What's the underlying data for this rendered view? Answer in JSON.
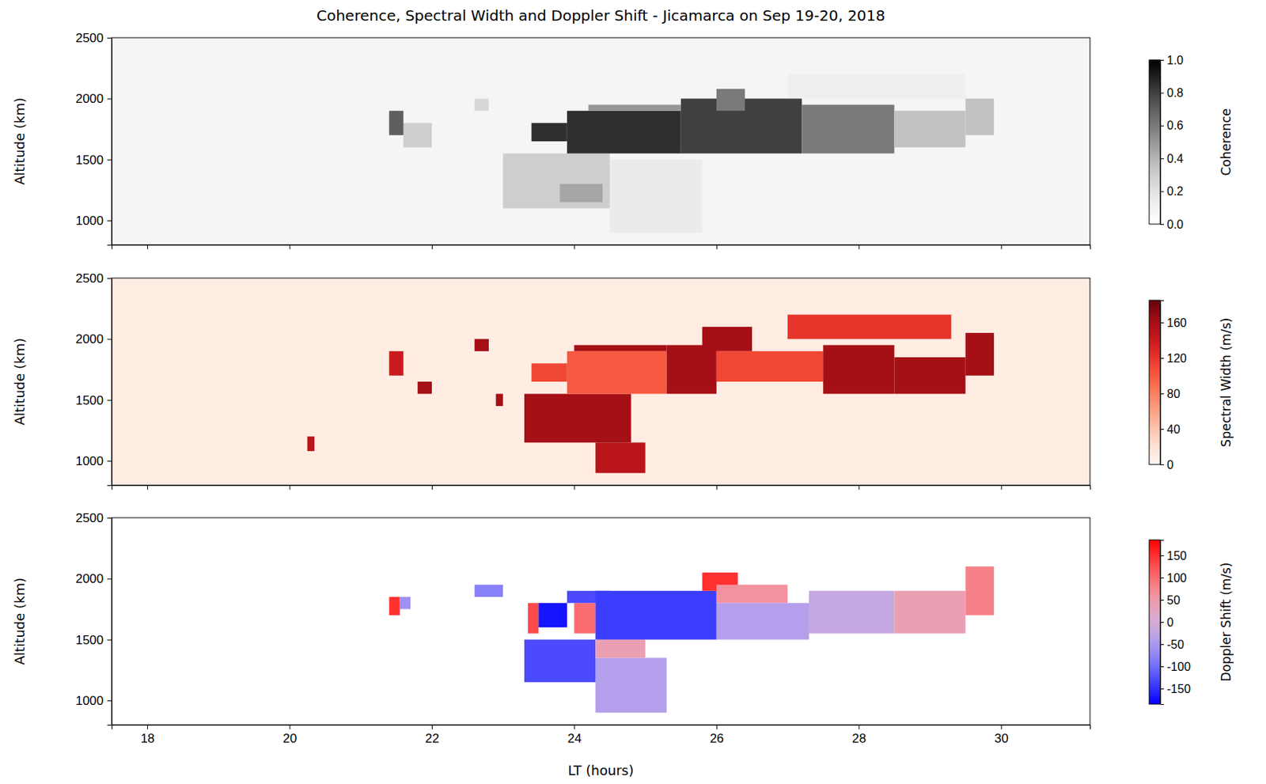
{
  "chart_data": [
    {
      "type": "heatmap",
      "title": "Coherence, Spectral Width and Doppler Shift - Jicamarca on Sep 19-20, 2018",
      "y_label": "Altitude (km)",
      "xlim": [
        17.5,
        31.25
      ],
      "ylim": [
        800,
        2500
      ],
      "xticks": [
        18,
        20,
        22,
        24,
        26,
        28,
        30
      ],
      "yticks": [
        1000,
        1500,
        2000,
        2500
      ],
      "tick_labels": "y",
      "color": "greys",
      "colorbar": {
        "label": "Coherence",
        "range": [
          0,
          1
        ],
        "ticks": [
          {
            "value": 0,
            "label": "0.0"
          },
          {
            "value": 0.2,
            "label": "0.2"
          },
          {
            "value": 0.4,
            "label": "0.4"
          },
          {
            "value": 0.6,
            "label": "0.6"
          },
          {
            "value": 0.8,
            "label": "0.8"
          },
          {
            "value": 1,
            "label": "1.0"
          }
        ]
      },
      "cells": [
        [
          17.5,
          31.25,
          800,
          2500,
          0.08
        ],
        [
          21.6,
          22.0,
          1600,
          1800,
          0.3
        ],
        [
          21.4,
          21.6,
          1700,
          1900,
          0.7
        ],
        [
          22.6,
          22.8,
          1900,
          2000,
          0.25
        ],
        [
          27.0,
          29.5,
          2000,
          2200,
          0.12
        ],
        [
          24.5,
          25.8,
          900,
          1500,
          0.15
        ],
        [
          23.0,
          24.5,
          1100,
          1550,
          0.3
        ],
        [
          23.8,
          24.4,
          1150,
          1300,
          0.45
        ],
        [
          23.4,
          23.9,
          1650,
          1800,
          0.85
        ],
        [
          23.9,
          25.5,
          1550,
          1900,
          0.85
        ],
        [
          24.2,
          25.5,
          1900,
          1950,
          0.5
        ],
        [
          25.5,
          27.2,
          1550,
          2000,
          0.8
        ],
        [
          26.0,
          26.4,
          1900,
          2080,
          0.6
        ],
        [
          27.2,
          28.5,
          1550,
          1950,
          0.6
        ],
        [
          28.5,
          29.5,
          1600,
          1900,
          0.35
        ],
        [
          29.5,
          29.9,
          1700,
          2000,
          0.35
        ]
      ]
    },
    {
      "type": "heatmap",
      "y_label": "Altitude (km)",
      "xlim": [
        17.5,
        31.25
      ],
      "ylim": [
        800,
        2500
      ],
      "xticks": [
        18,
        20,
        22,
        24,
        26,
        28,
        30
      ],
      "yticks": [
        1000,
        1500,
        2000,
        2500
      ],
      "tick_labels": "y",
      "color": "reds",
      "colorbar": {
        "label": "Spectral Width (m/s)",
        "range": [
          0,
          185
        ],
        "ticks": [
          0,
          40,
          80,
          120,
          160
        ]
      },
      "cells": [
        [
          17.5,
          31.25,
          800,
          2500,
          10
        ],
        [
          20.25,
          20.35,
          1080,
          1200,
          150
        ],
        [
          21.4,
          21.6,
          1700,
          1900,
          140
        ],
        [
          21.8,
          22.0,
          1550,
          1650,
          160
        ],
        [
          22.6,
          22.8,
          1900,
          2000,
          160
        ],
        [
          22.9,
          23.0,
          1450,
          1550,
          160
        ],
        [
          27.0,
          29.3,
          2000,
          2200,
          120
        ],
        [
          24.3,
          25.0,
          900,
          1150,
          150
        ],
        [
          23.3,
          24.8,
          1150,
          1550,
          160
        ],
        [
          24.0,
          25.3,
          1900,
          1950,
          160
        ],
        [
          23.4,
          23.9,
          1650,
          1800,
          110
        ],
        [
          23.9,
          25.3,
          1550,
          1900,
          100
        ],
        [
          25.3,
          26.0,
          1550,
          1950,
          160
        ],
        [
          25.8,
          26.5,
          1900,
          2100,
          160
        ],
        [
          26.0,
          27.5,
          1650,
          1900,
          110
        ],
        [
          27.5,
          28.5,
          1550,
          1950,
          160
        ],
        [
          28.5,
          29.5,
          1550,
          1850,
          160
        ],
        [
          29.5,
          29.9,
          1700,
          2050,
          160
        ]
      ]
    },
    {
      "type": "heatmap",
      "x_label": "LT (hours)",
      "y_label": "Altitude (km)",
      "xlim": [
        17.5,
        31.25
      ],
      "ylim": [
        800,
        2500
      ],
      "xticks": [
        18,
        20,
        22,
        24,
        26,
        28,
        30
      ],
      "yticks": [
        1000,
        1500,
        2000,
        2500
      ],
      "color": "bwr",
      "colorbar": {
        "label": "Doppler Shift (m/s)",
        "range": [
          -185,
          185
        ],
        "ticks": [
          150,
          100,
          50,
          0,
          -50,
          -100,
          -150
        ]
      },
      "cells": [
        [
          21.4,
          21.55,
          1700,
          1850,
          150
        ],
        [
          21.55,
          21.7,
          1750,
          1850,
          -60
        ],
        [
          22.6,
          23.0,
          1850,
          1950,
          -80
        ],
        [
          24.3,
          25.3,
          900,
          1350,
          -40
        ],
        [
          23.3,
          24.3,
          1150,
          1500,
          -130
        ],
        [
          24.3,
          25.0,
          1350,
          1500,
          40
        ],
        [
          23.35,
          23.5,
          1550,
          1800,
          130
        ],
        [
          23.5,
          23.9,
          1600,
          1800,
          -170
        ],
        [
          24.0,
          24.3,
          1550,
          1800,
          100
        ],
        [
          23.9,
          24.5,
          1800,
          1900,
          -130
        ],
        [
          24.3,
          26.0,
          1500,
          1900,
          -140
        ],
        [
          25.8,
          26.3,
          1900,
          2050,
          150
        ],
        [
          26.0,
          27.0,
          1800,
          1950,
          60
        ],
        [
          26.0,
          27.3,
          1500,
          1800,
          -40
        ],
        [
          27.3,
          28.5,
          1550,
          1900,
          -20
        ],
        [
          28.5,
          29.5,
          1550,
          1900,
          40
        ],
        [
          29.5,
          29.9,
          1700,
          2100,
          80
        ]
      ]
    }
  ]
}
